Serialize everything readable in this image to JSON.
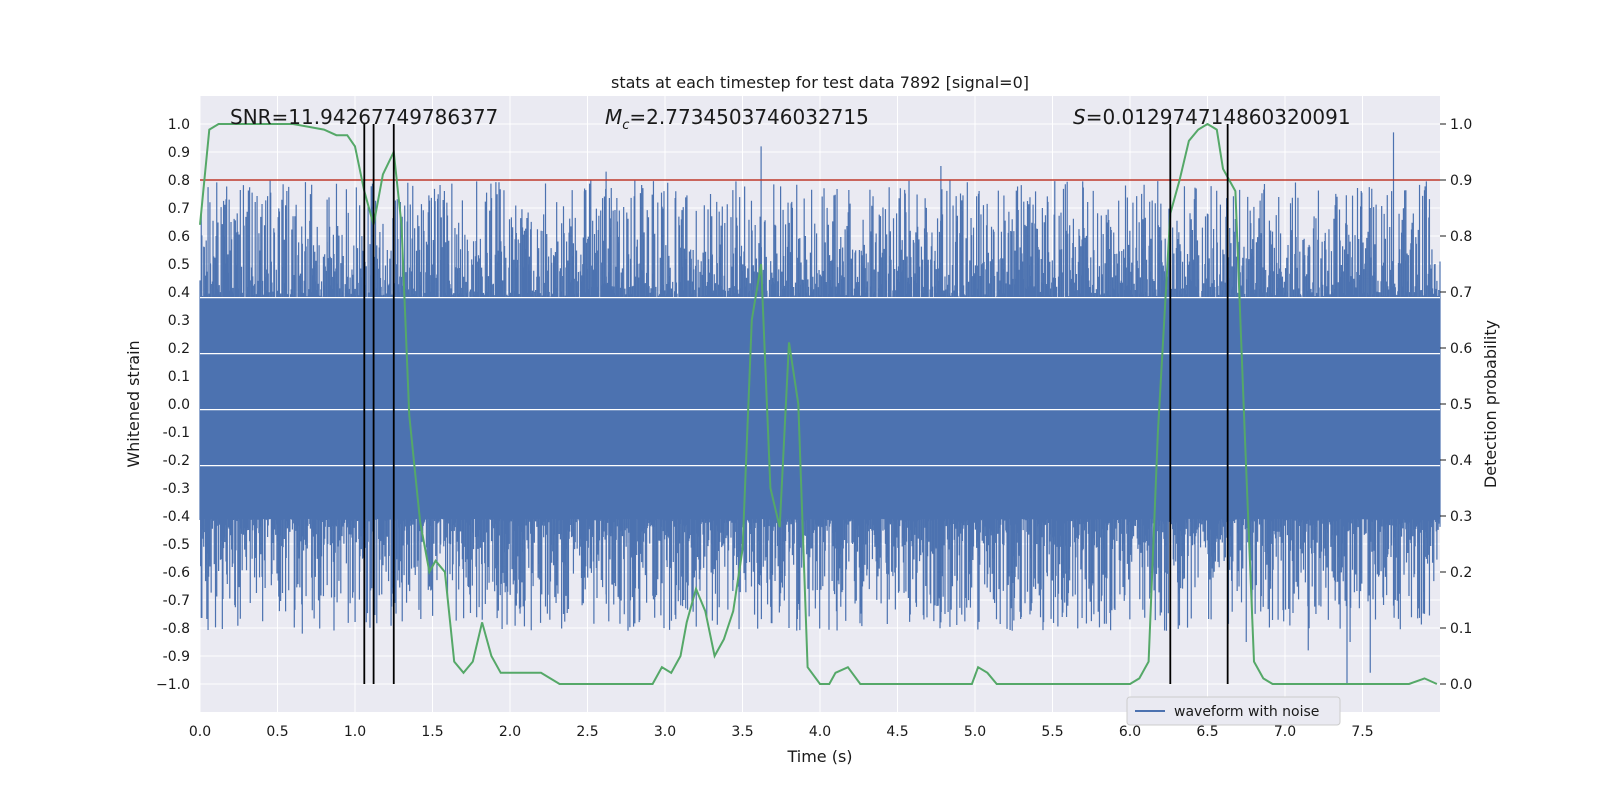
{
  "chart_data": {
    "type": "line",
    "title": "stats at each timestep for test data 7892 [signal=0]",
    "xlabel": "Time (s)",
    "ylabel_left": "Whitened strain",
    "ylabel_right": "Detection probability",
    "xlim": [
      0.0,
      8.0
    ],
    "ylim_left": [
      -1.1,
      1.1
    ],
    "ylim_right": [
      -0.05,
      1.05
    ],
    "x_ticks": [
      "0.0",
      "0.5",
      "1.0",
      "1.5",
      "2.0",
      "2.5",
      "3.0",
      "3.5",
      "4.0",
      "4.5",
      "5.0",
      "5.5",
      "6.0",
      "6.5",
      "7.0",
      "7.5"
    ],
    "y_left_ticks": [
      "1.0",
      "0.9",
      "0.8",
      "0.7",
      "0.6",
      "0.5",
      "0.4",
      "0.3",
      "0.2",
      "0.1",
      "0.0",
      "-0.1",
      "-0.2",
      "-0.3",
      "-0.4",
      "-0.5",
      "-0.6",
      "-0.7",
      "-0.8",
      "-0.9",
      "−1.0"
    ],
    "y_right_ticks": [
      "1.0",
      "0.9",
      "0.8",
      "0.7",
      "0.6",
      "0.5",
      "0.4",
      "0.3",
      "0.2",
      "0.1",
      "0.0"
    ],
    "annotations": {
      "snr": "SNR=11.94267749786377",
      "mc_symbol": "M",
      "mc_subscript": "c",
      "mc_value": "=2.7734503746032715",
      "s_symbol": "S",
      "s_value": "=0.012974714860320091"
    },
    "legend": {
      "label": "waveform with noise",
      "location": "lower-right"
    },
    "threshold": {
      "value": 0.9,
      "axis": "right",
      "color": "#c0392b"
    },
    "vertical_lines_x": [
      1.06,
      1.12,
      1.25,
      6.26,
      6.63
    ],
    "strain_series": {
      "name": "waveform with noise",
      "color": "#4c72b0",
      "duration_s": 8.0,
      "samples": 2000,
      "core_band": [
        -0.41,
        0.38
      ],
      "max_peak": 0.97,
      "min_peak": -1.0
    },
    "probability_series": {
      "name": "detection probability",
      "color": "#55a868",
      "x": [
        0.0,
        0.06,
        0.12,
        0.2,
        0.4,
        0.6,
        0.8,
        0.88,
        0.95,
        1.0,
        1.06,
        1.12,
        1.18,
        1.25,
        1.3,
        1.35,
        1.42,
        1.48,
        1.52,
        1.58,
        1.64,
        1.7,
        1.76,
        1.82,
        1.88,
        1.94,
        2.0,
        2.1,
        2.2,
        2.26,
        2.32,
        2.45,
        2.6,
        2.75,
        2.85,
        2.92,
        2.98,
        3.04,
        3.1,
        3.14,
        3.2,
        3.26,
        3.32,
        3.38,
        3.44,
        3.5,
        3.56,
        3.62,
        3.68,
        3.74,
        3.8,
        3.86,
        3.92,
        4.0,
        4.06,
        4.1,
        4.18,
        4.26,
        4.34,
        4.42,
        4.5,
        4.6,
        4.72,
        4.84,
        4.92,
        4.98,
        5.02,
        5.08,
        5.14,
        5.3,
        5.5,
        5.7,
        5.9,
        6.0,
        6.06,
        6.12,
        6.18,
        6.26,
        6.32,
        6.38,
        6.44,
        6.5,
        6.56,
        6.6,
        6.64,
        6.68,
        6.74,
        6.8,
        6.86,
        6.92,
        7.0,
        7.2,
        7.4,
        7.6,
        7.8,
        7.9,
        7.98
      ],
      "y": [
        0.82,
        0.99,
        1.0,
        1.0,
        1.0,
        1.0,
        0.99,
        0.98,
        0.98,
        0.96,
        0.88,
        0.82,
        0.91,
        0.95,
        0.82,
        0.48,
        0.29,
        0.2,
        0.22,
        0.2,
        0.04,
        0.02,
        0.04,
        0.11,
        0.05,
        0.02,
        0.02,
        0.02,
        0.02,
        0.01,
        0.0,
        0.0,
        0.0,
        0.0,
        0.0,
        0.0,
        0.03,
        0.02,
        0.05,
        0.11,
        0.17,
        0.13,
        0.05,
        0.08,
        0.13,
        0.24,
        0.65,
        0.75,
        0.35,
        0.28,
        0.61,
        0.5,
        0.03,
        0.0,
        0.0,
        0.02,
        0.03,
        0.0,
        0.0,
        0.0,
        0.0,
        0.0,
        0.0,
        0.0,
        0.0,
        0.0,
        0.03,
        0.02,
        0.0,
        0.0,
        0.0,
        0.0,
        0.0,
        0.0,
        0.01,
        0.04,
        0.45,
        0.84,
        0.9,
        0.97,
        0.99,
        1.0,
        0.99,
        0.92,
        0.9,
        0.88,
        0.45,
        0.04,
        0.01,
        0.0,
        0.0,
        0.0,
        0.0,
        0.0,
        0.0,
        0.01,
        0.0
      ]
    }
  }
}
